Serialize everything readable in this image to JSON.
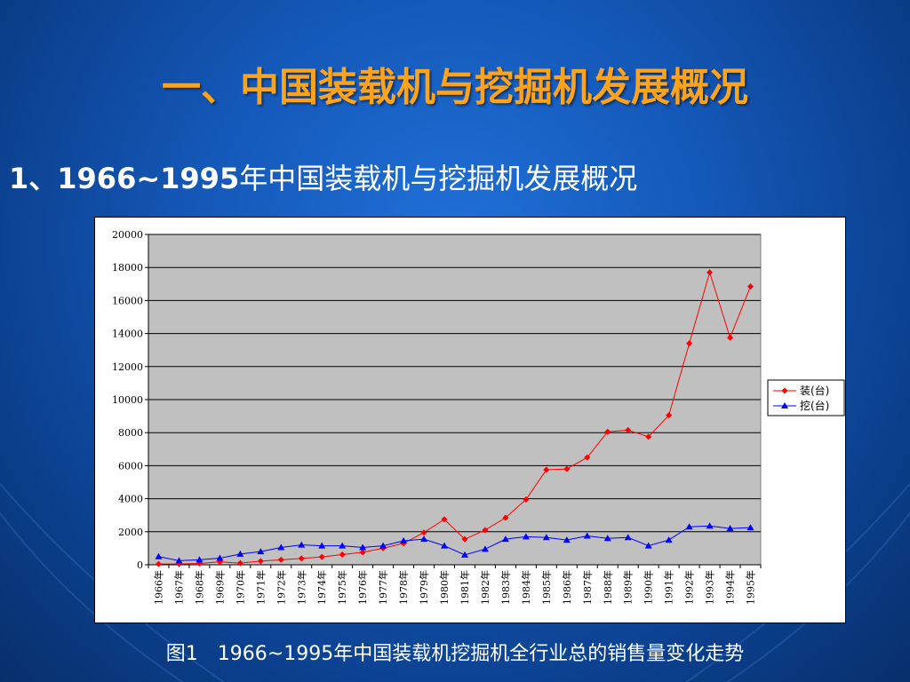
{
  "slide": {
    "title": "一、中国装载机与挖掘机发展概况",
    "subtitle_num": "1、1966~1995",
    "subtitle_text": "年中国装载机与挖掘机发展概况",
    "caption": "图1　1966~1995年中国装载机挖掘机全行业总的销售量变化走势"
  },
  "colors": {
    "title": "#ffa31a",
    "plot_bg": "#c0c0c0",
    "loader": "#ff0000",
    "excavator": "#0000ff"
  },
  "chart_data": {
    "type": "line",
    "title": "",
    "xlabel": "",
    "ylabel": "",
    "ylim": [
      0,
      20000
    ],
    "yticks": [
      0,
      2000,
      4000,
      6000,
      8000,
      10000,
      12000,
      14000,
      16000,
      18000,
      20000
    ],
    "grid": true,
    "legend": "right",
    "categories": [
      "1966年",
      "1967年",
      "1968年",
      "1969年",
      "1970年",
      "1971年",
      "1972年",
      "1973年",
      "1974年",
      "1975年",
      "1976年",
      "1977年",
      "1978年",
      "1979年",
      "1980年",
      "1981年",
      "1982年",
      "1983年",
      "1984年",
      "1985年",
      "1986年",
      "1987年",
      "1988年",
      "1989年",
      "1990年",
      "1991年",
      "1992年",
      "1993年",
      "1994年",
      "1995年"
    ],
    "series": [
      {
        "name": "装(台)",
        "marker": "diamond",
        "values": [
          50,
          50,
          80,
          180,
          100,
          220,
          300,
          380,
          480,
          620,
          760,
          1000,
          1300,
          1950,
          2750,
          1550,
          2100,
          2850,
          3950,
          5750,
          5800,
          6500,
          8050,
          8150,
          7750,
          9050,
          13400,
          17700,
          13750,
          16850
        ]
      },
      {
        "name": "挖(台)",
        "marker": "triangle",
        "values": [
          500,
          250,
          300,
          400,
          650,
          800,
          1050,
          1200,
          1150,
          1150,
          1050,
          1150,
          1450,
          1550,
          1150,
          600,
          950,
          1550,
          1700,
          1650,
          1500,
          1750,
          1600,
          1650,
          1150,
          1500,
          2300,
          2350,
          2200,
          2250
        ]
      }
    ]
  }
}
